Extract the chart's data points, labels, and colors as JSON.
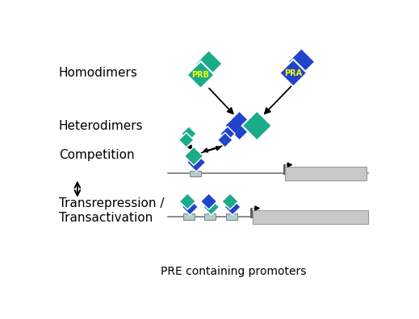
{
  "bg_color": "#ffffff",
  "teal_color": "#1aab8a",
  "blue_color": "#2244cc",
  "light_gray": "#c8c8c8",
  "small_box_color": "#b0d0d0",
  "text_color": "#000000",
  "label_homodimers": "Homodimers",
  "label_heterodimers": "Heterodimers",
  "label_competition": "Competition",
  "label_transrepression": "Transrepression /\nTransactivation",
  "label_pre": "PRE containing promoters",
  "label_prb": "PRB",
  "label_pra": "PRA"
}
